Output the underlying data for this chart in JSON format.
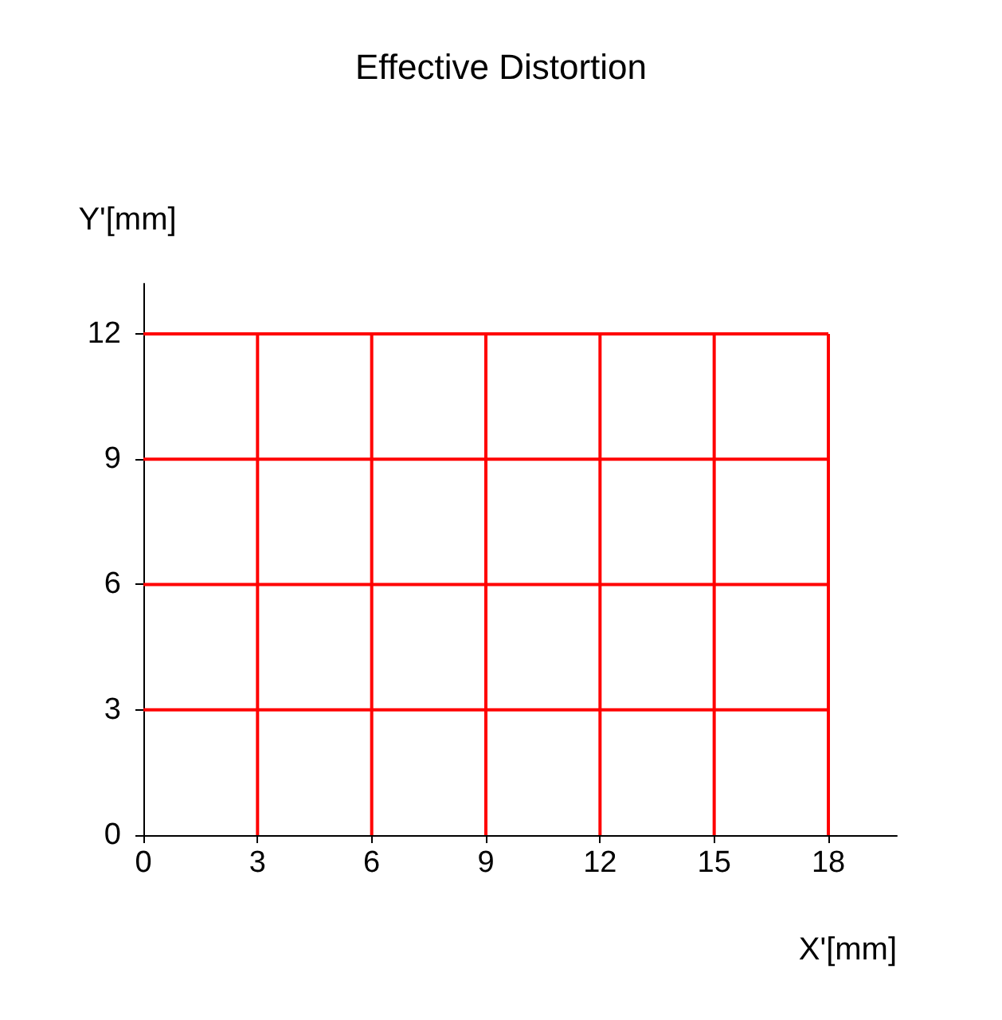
{
  "chart_data": {
    "type": "line",
    "title": "Effective Distortion",
    "xlabel": "X'[mm]",
    "ylabel": "Y'[mm]",
    "xlim": [
      0,
      19.8
    ],
    "ylim": [
      0,
      13.2
    ],
    "xticks": [
      0,
      3,
      6,
      9,
      12,
      15,
      18
    ],
    "yticks": [
      0,
      3,
      6,
      9,
      12
    ],
    "marker": "none",
    "line_style": "solid",
    "series": [
      {
        "color": "#ff0000",
        "x": [
          0,
          18
        ],
        "values": [
          3,
          3
        ]
      },
      {
        "color": "#ff0000",
        "x": [
          0,
          18
        ],
        "values": [
          6,
          6
        ]
      },
      {
        "color": "#ff0000",
        "x": [
          0,
          18
        ],
        "values": [
          9,
          9
        ]
      },
      {
        "color": "#ff0000",
        "x": [
          0,
          18
        ],
        "values": [
          12,
          12
        ]
      },
      {
        "color": "#ff0000",
        "x": [
          3,
          3
        ],
        "values": [
          0,
          12
        ]
      },
      {
        "color": "#ff0000",
        "x": [
          6,
          6
        ],
        "values": [
          0,
          12
        ]
      },
      {
        "color": "#ff0000",
        "x": [
          9,
          9
        ],
        "values": [
          0,
          12
        ]
      },
      {
        "color": "#ff0000",
        "x": [
          12,
          12
        ],
        "values": [
          0,
          12
        ]
      },
      {
        "color": "#ff0000",
        "x": [
          15,
          15
        ],
        "values": [
          0,
          12
        ]
      },
      {
        "color": "#ff0000",
        "x": [
          18,
          18
        ],
        "values": [
          0,
          12
        ]
      }
    ]
  }
}
